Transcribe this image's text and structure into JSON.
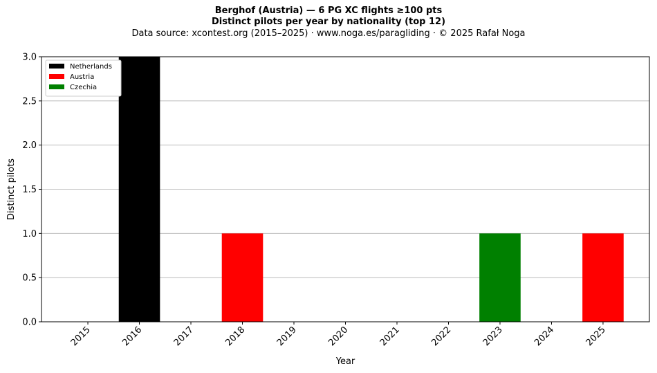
{
  "chart_data": {
    "type": "bar",
    "title_line1": "Berghof (Austria)  —  6 PG XC flights ≥100 pts",
    "title_line2": "Distinct pilots per year by nationality (top 12)",
    "subtitle": "Data source: xcontest.org (2015–2025)  ·  www.noga.es/paragliding  ·  © 2025 Rafał Noga",
    "xlabel": "Year",
    "ylabel": "Distinct pilots",
    "ylim": [
      0,
      3
    ],
    "yticks": [
      "0.0",
      "0.5",
      "1.0",
      "1.5",
      "2.0",
      "2.5",
      "3.0"
    ],
    "ytick_values": [
      0,
      0.5,
      1,
      1.5,
      2,
      2.5,
      3
    ],
    "categories": [
      "2015",
      "2016",
      "2017",
      "2018",
      "2019",
      "2020",
      "2021",
      "2022",
      "2023",
      "2024",
      "2025"
    ],
    "grid": "y",
    "legend_position": "top-left",
    "series": [
      {
        "name": "Netherlands",
        "color": "#000000",
        "values": [
          0,
          3,
          0,
          0,
          0,
          0,
          0,
          0,
          0,
          0,
          0
        ]
      },
      {
        "name": "Austria",
        "color": "#ff0000",
        "values": [
          0,
          0,
          0,
          1,
          0,
          0,
          0,
          0,
          0,
          0,
          1
        ]
      },
      {
        "name": "Czechia",
        "color": "#008000",
        "values": [
          0,
          0,
          0,
          0,
          0,
          0,
          0,
          0,
          1,
          0,
          0
        ]
      }
    ]
  }
}
